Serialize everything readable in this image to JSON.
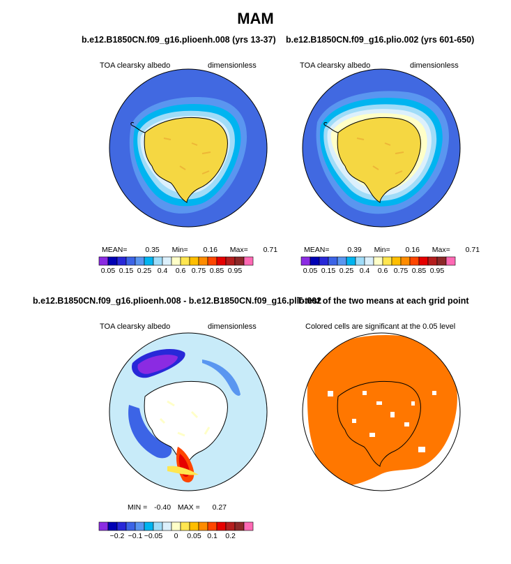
{
  "title": "MAM",
  "panels": {
    "p1": {
      "subtitle": "b.e12.B1850CN.f09_g16.plioenh.008 (yrs 13-37)",
      "left_label": "TOA clearsky albedo",
      "right_label": "dimensionless",
      "mean_label": "MEAN=",
      "mean": "0.35",
      "min_label": "Min=",
      "min": "0.16",
      "max_label": "Max=",
      "max": "0.71"
    },
    "p2": {
      "subtitle": "b.e12.B1850CN.f09_g16.plio.002 (yrs 601-650)",
      "left_label": "TOA clearsky albedo",
      "right_label": "dimensionless",
      "mean_label": "MEAN=",
      "mean": "0.39",
      "min_label": "Min=",
      "min": "0.16",
      "max_label": "Max=",
      "max": "0.71"
    },
    "p3": {
      "subtitle": "b.e12.B1850CN.f09_g16.plioenh.008 - b.e12.B1850CN.f09_g16.plio.002",
      "left_label": "TOA clearsky albedo",
      "right_label": "dimensionless",
      "min_label": "MIN =",
      "min": "-0.40",
      "max_label": "MAX =",
      "max": "0.27"
    },
    "p4": {
      "subtitle": "T-test of the two means at each grid point",
      "left_label": "Colored cells are significant at the 0.05 level"
    }
  },
  "colorbars": {
    "abs": {
      "colors": [
        "#8B2BE2",
        "#0000B4",
        "#2828D8",
        "#3C64E6",
        "#5A96F0",
        "#00B4F0",
        "#A0DCF8",
        "#DCF0FC",
        "#FFFFC8",
        "#FFE650",
        "#FFBE00",
        "#FF8C00",
        "#FF4600",
        "#E60000",
        "#B41E1E",
        "#8C2828",
        "#FF69B4"
      ],
      "labels": [
        "0.05",
        "0.15",
        "0.25",
        "0.4",
        "0.6",
        "0.75",
        "0.85",
        "0.95"
      ]
    },
    "diff": {
      "colors": [
        "#8B2BE2",
        "#0000B4",
        "#2828D8",
        "#3C64E6",
        "#5A96F0",
        "#00B4F0",
        "#A0DCF8",
        "#DCF0FC",
        "#FFFFC8",
        "#FFE650",
        "#FFBE00",
        "#FF8C00",
        "#FF4600",
        "#E60000",
        "#B41E1E",
        "#8C2828",
        "#FF69B4"
      ],
      "labels": [
        "−0.2",
        "−0.1",
        "−0.05",
        "0",
        "0.05",
        "0.1",
        "0.2"
      ]
    }
  },
  "colors": {
    "ocean": "#4169E1",
    "ice_yellow": "#F5D742",
    "light_blue": "#C8EBF9",
    "sig_orange": "#FF7700"
  }
}
